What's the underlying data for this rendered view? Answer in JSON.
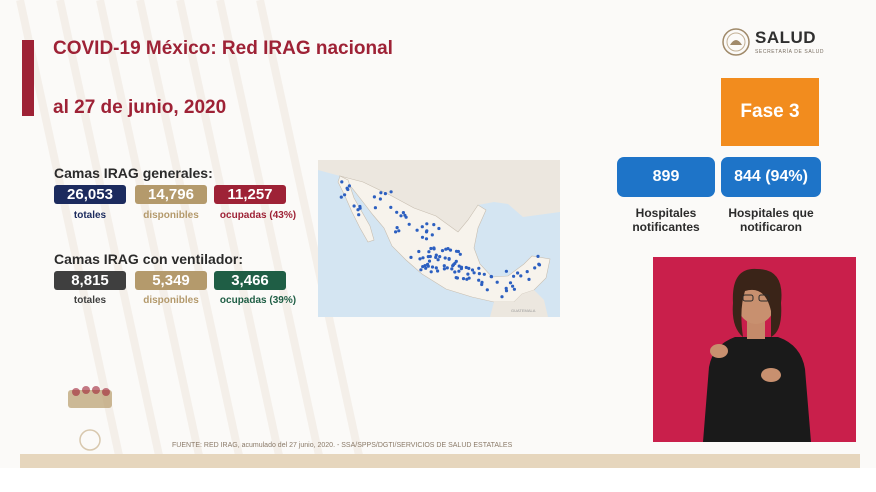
{
  "header": {
    "title_line1": "COVID-19 México: Red IRAG nacional",
    "title_line2": "al 27 de junio, 2020"
  },
  "logo": {
    "word": "SALUD",
    "subtitle": "SECRETARÍA DE SALUD"
  },
  "camas_generales": {
    "title": "Camas IRAG generales:",
    "totales": {
      "value": "26,053",
      "label": "totales"
    },
    "disponibles": {
      "value": "14,796",
      "label": "disponibles"
    },
    "ocupadas": {
      "value": "11,257",
      "label": "ocupadas (43%)"
    }
  },
  "camas_ventilador": {
    "title": "Camas IRAG con ventilador:",
    "totales": {
      "value": "8,815",
      "label": "totales"
    },
    "disponibles": {
      "value": "5,349",
      "label": "disponibles"
    },
    "ocupadas": {
      "value": "3,466",
      "label": "ocupadas (39%)"
    }
  },
  "fase": {
    "label": "Fase 3"
  },
  "hospitales": {
    "notificantes": {
      "value": "899",
      "label_line1": "Hospitales",
      "label_line2": "notificantes"
    },
    "notificaron": {
      "value": "844 (94%)",
      "label_line1": "Hospitales que",
      "label_line2": "notificaron"
    }
  },
  "map": {
    "country_label": "GUATEMALA"
  },
  "footer": {
    "source": "FUENTE: RED IRAG, acumulado del 27 junio, 2020. - SSA/SPPS/DGTI/SERVICIOS DE SALUD ESTATALES"
  },
  "colors": {
    "title": "#9e2236",
    "totales_generales": "#1c2b5e",
    "disponibles": "#b49a6c",
    "ocupadas_generales": "#9e2236",
    "totales_ventilador": "#3f3f3f",
    "ocupadas_ventilador": "#1f5e45",
    "fase": "#f28c1e",
    "hospitales": "#1e74c8",
    "interpreter_bg": "#c91f4b",
    "map_dots": "#2c5fc0"
  }
}
